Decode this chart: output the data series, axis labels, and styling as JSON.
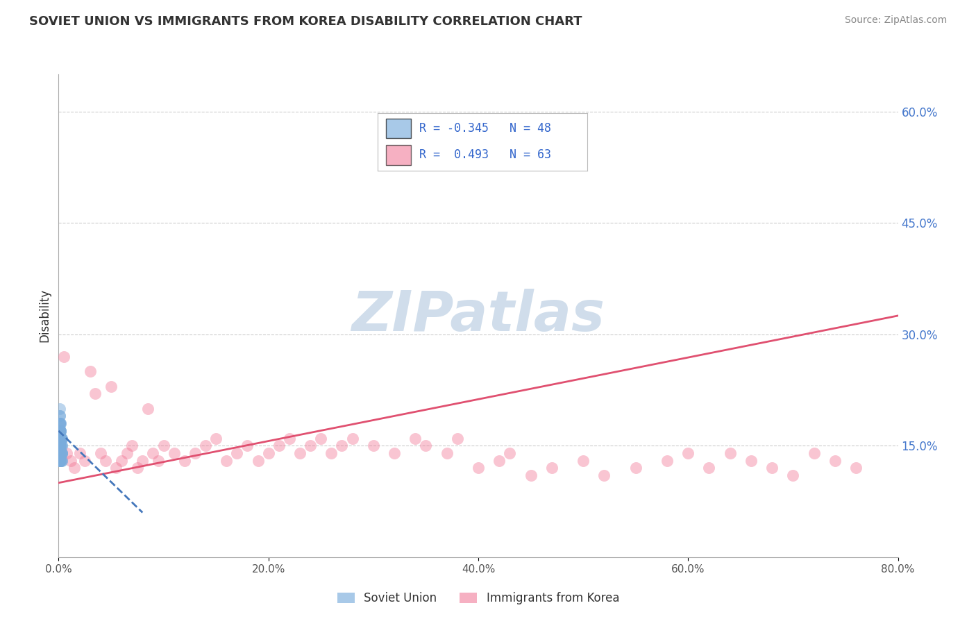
{
  "title": "SOVIET UNION VS IMMIGRANTS FROM KOREA DISABILITY CORRELATION CHART",
  "source_text": "Source: ZipAtlas.com",
  "ylabel": "Disability",
  "xlim": [
    0.0,
    0.8
  ],
  "ylim": [
    0.0,
    0.65
  ],
  "xticks": [
    0.0,
    0.2,
    0.4,
    0.6,
    0.8
  ],
  "xtick_labels": [
    "0.0%",
    "20.0%",
    "40.0%",
    "60.0%",
    "80.0%"
  ],
  "yticks": [
    0.15,
    0.3,
    0.45,
    0.6
  ],
  "ytick_labels": [
    "15.0%",
    "30.0%",
    "45.0%",
    "60.0%"
  ],
  "grid_color": "#cccccc",
  "background_color": "#ffffff",
  "blue_R": -0.345,
  "blue_N": 48,
  "pink_R": 0.493,
  "pink_N": 63,
  "blue_color": "#7aacdc",
  "pink_color": "#f07090",
  "blue_scatter_alpha": 0.5,
  "pink_scatter_alpha": 0.4,
  "scatter_size": 150,
  "legend_label_blue": "Soviet Union",
  "legend_label_pink": "Immigrants from Korea",
  "watermark": "ZIPatlas",
  "watermark_color": "#c8d8e8",
  "blue_scatter_x": [
    0.001,
    0.002,
    0.003,
    0.001,
    0.002,
    0.001,
    0.003,
    0.002,
    0.001,
    0.002,
    0.001,
    0.003,
    0.002,
    0.001,
    0.002,
    0.003,
    0.001,
    0.002,
    0.001,
    0.002,
    0.003,
    0.001,
    0.002,
    0.001,
    0.003,
    0.002,
    0.001,
    0.002,
    0.003,
    0.001,
    0.002,
    0.001,
    0.002,
    0.003,
    0.001,
    0.002,
    0.001,
    0.002,
    0.003,
    0.001,
    0.002,
    0.001,
    0.003,
    0.002,
    0.001,
    0.002,
    0.001,
    0.003
  ],
  "blue_scatter_y": [
    0.17,
    0.16,
    0.15,
    0.14,
    0.13,
    0.18,
    0.14,
    0.15,
    0.19,
    0.16,
    0.2,
    0.13,
    0.17,
    0.15,
    0.14,
    0.16,
    0.18,
    0.13,
    0.17,
    0.15,
    0.14,
    0.16,
    0.13,
    0.18,
    0.15,
    0.17,
    0.14,
    0.16,
    0.13,
    0.15,
    0.18,
    0.14,
    0.17,
    0.16,
    0.13,
    0.15,
    0.19,
    0.14,
    0.16,
    0.13,
    0.17,
    0.15,
    0.14,
    0.16,
    0.13,
    0.18,
    0.15,
    0.14
  ],
  "pink_scatter_x": [
    0.005,
    0.008,
    0.012,
    0.015,
    0.02,
    0.025,
    0.03,
    0.035,
    0.04,
    0.045,
    0.05,
    0.055,
    0.06,
    0.065,
    0.07,
    0.075,
    0.08,
    0.085,
    0.09,
    0.095,
    0.1,
    0.11,
    0.12,
    0.13,
    0.14,
    0.15,
    0.16,
    0.17,
    0.18,
    0.19,
    0.2,
    0.21,
    0.22,
    0.23,
    0.24,
    0.25,
    0.26,
    0.27,
    0.28,
    0.3,
    0.32,
    0.34,
    0.35,
    0.37,
    0.38,
    0.4,
    0.42,
    0.43,
    0.45,
    0.47,
    0.5,
    0.52,
    0.55,
    0.58,
    0.6,
    0.62,
    0.64,
    0.66,
    0.68,
    0.7,
    0.72,
    0.74,
    0.76
  ],
  "pink_scatter_y": [
    0.27,
    0.14,
    0.13,
    0.12,
    0.14,
    0.13,
    0.25,
    0.22,
    0.14,
    0.13,
    0.23,
    0.12,
    0.13,
    0.14,
    0.15,
    0.12,
    0.13,
    0.2,
    0.14,
    0.13,
    0.15,
    0.14,
    0.13,
    0.14,
    0.15,
    0.16,
    0.13,
    0.14,
    0.15,
    0.13,
    0.14,
    0.15,
    0.16,
    0.14,
    0.15,
    0.16,
    0.14,
    0.15,
    0.16,
    0.15,
    0.14,
    0.16,
    0.15,
    0.14,
    0.16,
    0.12,
    0.13,
    0.14,
    0.11,
    0.12,
    0.13,
    0.11,
    0.12,
    0.13,
    0.14,
    0.12,
    0.14,
    0.13,
    0.12,
    0.11,
    0.14,
    0.13,
    0.12
  ],
  "blue_trendline_color": "#4477bb",
  "blue_trendline_style": "--",
  "pink_trendline_color": "#e05070",
  "pink_trendline_style": "-",
  "pink_trend_x0": 0.0,
  "pink_trend_y0": 0.1,
  "pink_trend_x1": 0.8,
  "pink_trend_y1": 0.325,
  "blue_trend_x0": 0.0,
  "blue_trend_y0": 0.17,
  "blue_trend_x1": 0.08,
  "blue_trend_y1": 0.06
}
